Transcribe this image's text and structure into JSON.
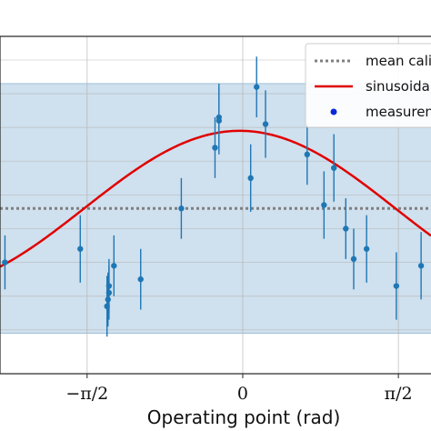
{
  "chart_data": {
    "type": "scatter",
    "xlabel": "Operating point (rad)",
    "x_ticks": [
      {
        "value": -1.5708,
        "label": "−π/2"
      },
      {
        "value": 0,
        "label": "0"
      },
      {
        "value": 1.5708,
        "label": "π/2"
      }
    ],
    "xlim": [
      -2.45,
      1.9
    ],
    "ylim": [
      0,
      10
    ],
    "grid": true,
    "legend_placement": "top-right",
    "band": {
      "lower": 1.2,
      "upper": 8.6,
      "color": "#cfe0ee"
    },
    "series": [
      {
        "name": "mean cali",
        "kind": "hline",
        "y": 4.9,
        "color": "#808080",
        "style": "dotted"
      },
      {
        "name": "sinusoida",
        "kind": "curve",
        "offset": 4.9,
        "amplitude": 2.3,
        "phase": -0.03,
        "color": "#e00000"
      },
      {
        "name": "measuren",
        "kind": "points",
        "color": "#1f77b4",
        "x": [
          -2.4,
          -1.64,
          -1.36,
          -1.37,
          -1.35,
          -1.35,
          -1.3,
          -1.03,
          -0.62,
          -0.28,
          -0.24,
          -0.24,
          0.08,
          0.14,
          0.23,
          0.65,
          0.82,
          0.92,
          1.04,
          1.12,
          1.25,
          1.55,
          1.8
        ],
        "y": [
          3.3,
          3.7,
          2.2,
          2.0,
          2.4,
          2.6,
          3.2,
          2.8,
          4.9,
          6.7,
          7.5,
          7.6,
          5.8,
          8.5,
          7.4,
          6.5,
          5.0,
          6.1,
          4.3,
          3.4,
          3.7,
          2.6,
          3.2
        ],
        "err": [
          0.8,
          1.0,
          0.8,
          0.9,
          0.8,
          0.8,
          0.9,
          0.9,
          0.9,
          0.9,
          1.0,
          1.0,
          1.0,
          0.9,
          1.0,
          0.9,
          1.0,
          1.0,
          0.9,
          0.9,
          1.0,
          1.0,
          1.0
        ]
      }
    ]
  }
}
